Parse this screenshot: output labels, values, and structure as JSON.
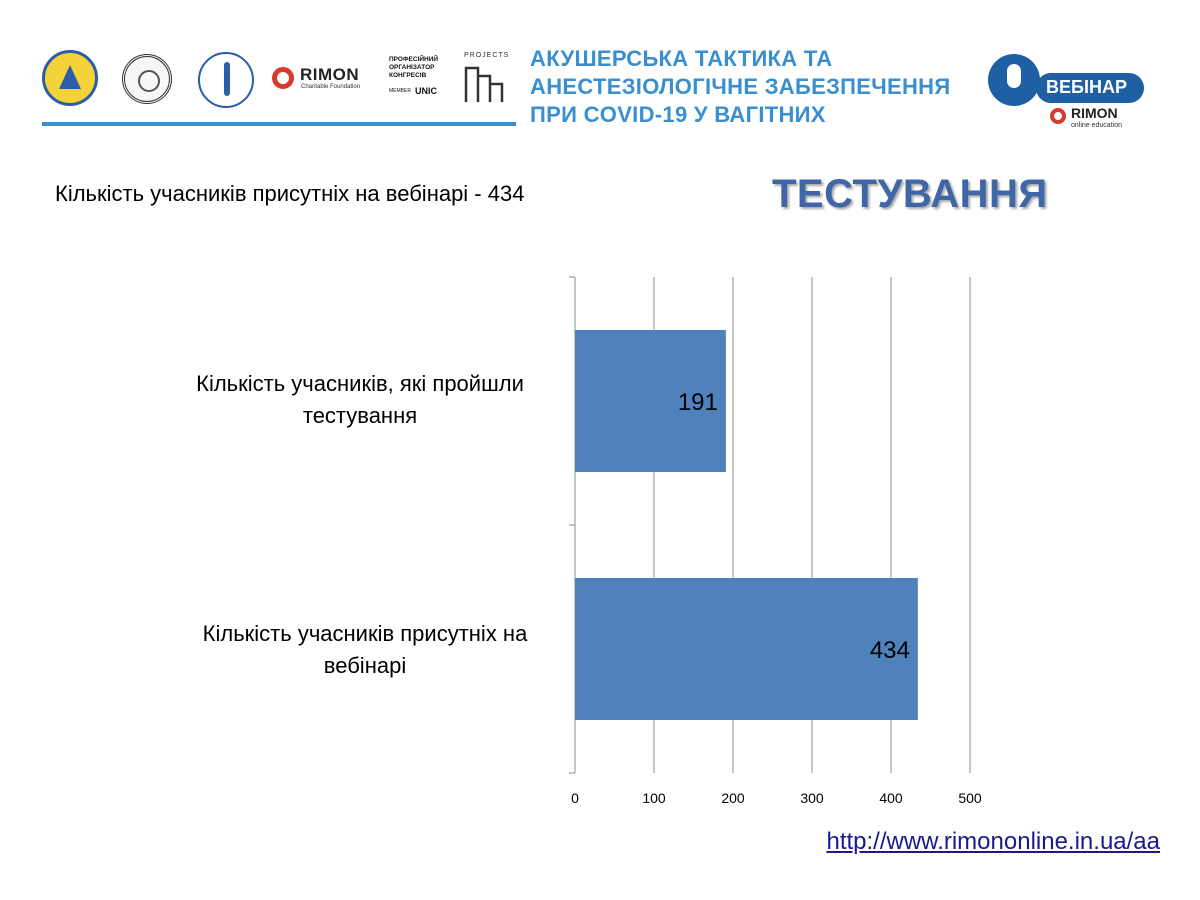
{
  "header": {
    "headline_lines": [
      "АКУШЕРСЬКА ТАКТИКА ТА",
      "АНЕСТЕЗІОЛОГІЧНЕ ЗАБЕЗПЕЧЕННЯ",
      "ПРИ COVID-19 У ВАГІТНИХ"
    ],
    "rimon_name": "RIMON",
    "rimon_sub": "Charitable Foundation",
    "organizer_lines": [
      "ПРОФЕСІЙНИЙ",
      "ОРГАНІЗАТОР",
      "КОНГРЕСІВ"
    ],
    "unic_member": "MEMBER",
    "unic_logo": "UNIC",
    "projects_word": "PROJECTS",
    "webinar_label": "ВЕБІНАР",
    "webinar_rimon": "RIMON",
    "webinar_rimon_sub": "online education",
    "accent_color": "#3a8fd0",
    "webinar_color": "#1f5fa3",
    "rimon_color": "#d83a2e"
  },
  "subtitle": "Кількість учасників присутніх на вебінарі - 434",
  "section_title": "ТЕСТУВАННЯ",
  "footer_url": "http://www.rimononline.in.ua/aa",
  "chart_data": {
    "type": "bar",
    "orientation": "horizontal",
    "categories": [
      "Кількість учасників, які пройшли тестування",
      "Кількість учасників присутніх на вебінарі"
    ],
    "category_label_lines": [
      [
        "Кількість учасників, які пройшли",
        "тестування"
      ],
      [
        "Кількість учасників присутніх на",
        "вебінарі"
      ]
    ],
    "values": [
      191,
      434
    ],
    "data_labels": [
      "191",
      "434"
    ],
    "xlim": [
      0,
      500
    ],
    "xticks": [
      0,
      100,
      200,
      300,
      400,
      500
    ],
    "grid": true,
    "legend": "none",
    "bar_color": "#4f81bd",
    "title": "",
    "xlabel": "",
    "ylabel": ""
  }
}
